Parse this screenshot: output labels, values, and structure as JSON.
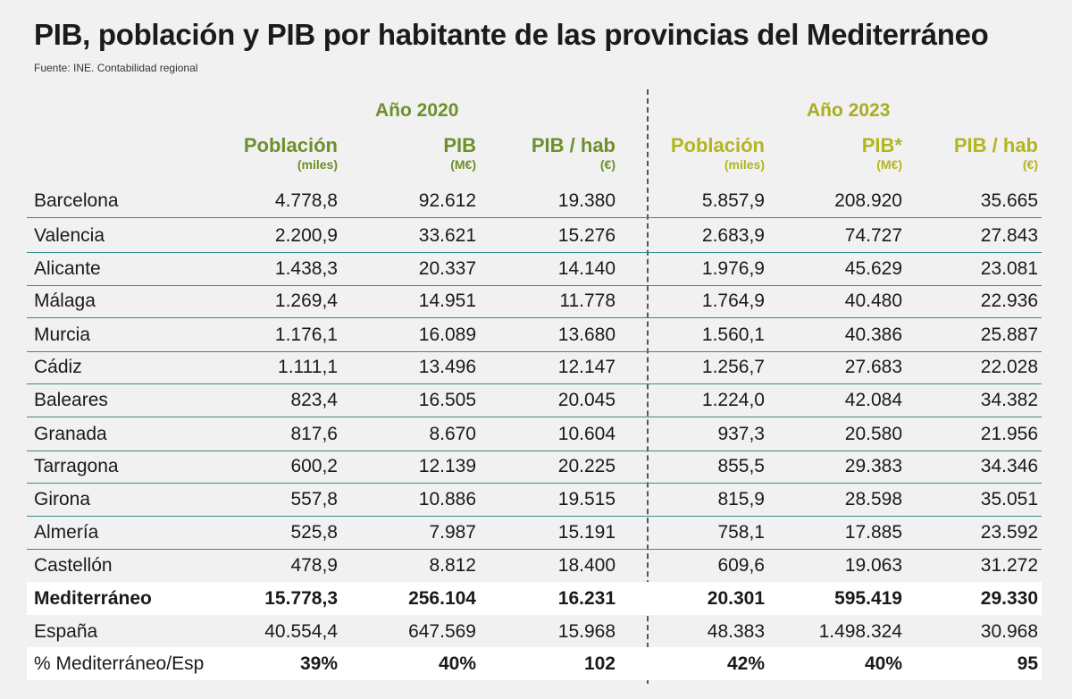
{
  "title": "PIB, población y PIB por habitante de las provincias del Mediterráneo",
  "source": "Fuente: INE. Contabilidad regional",
  "groups": [
    {
      "label": "Año 2020"
    },
    {
      "label": "Año 2023"
    }
  ],
  "columns": [
    {
      "label": "Población",
      "unit": "(miles)"
    },
    {
      "label": "PIB",
      "unit": "(M€)"
    },
    {
      "label": "PIB / hab",
      "unit": "(€)"
    },
    {
      "label": "Población",
      "unit": "(miles)"
    },
    {
      "label": "PIB*",
      "unit": "(M€)"
    },
    {
      "label": "PIB / hab",
      "unit": "(€)"
    }
  ],
  "rows": [
    {
      "name": "Barcelona",
      "values": [
        "4.778,8",
        "92.612",
        "19.380",
        "5.857,9",
        "208.920",
        "35.665"
      ]
    },
    {
      "name": "Valencia",
      "values": [
        "2.200,9",
        "33.621",
        "15.276",
        "2.683,9",
        "74.727",
        "27.843"
      ]
    },
    {
      "name": "Alicante",
      "values": [
        "1.438,3",
        "20.337",
        "14.140",
        "1.976,9",
        "45.629",
        "23.081"
      ]
    },
    {
      "name": "Málaga",
      "values": [
        "1.269,4",
        "14.951",
        "11.778",
        "1.764,9",
        "40.480",
        "22.936"
      ]
    },
    {
      "name": "Murcia",
      "values": [
        "1.176,1",
        "16.089",
        "13.680",
        "1.560,1",
        "40.386",
        "25.887"
      ]
    },
    {
      "name": "Cádiz",
      "values": [
        "1.111,1",
        "13.496",
        "12.147",
        "1.256,7",
        "27.683",
        "22.028"
      ]
    },
    {
      "name": "Baleares",
      "values": [
        "823,4",
        "16.505",
        "20.045",
        "1.224,0",
        "42.084",
        "34.382"
      ]
    },
    {
      "name": "Granada",
      "values": [
        "817,6",
        "8.670",
        "10.604",
        "937,3",
        "20.580",
        "21.956"
      ]
    },
    {
      "name": "Tarragona",
      "values": [
        "600,2",
        "12.139",
        "20.225",
        "855,5",
        "29.383",
        "34.346"
      ]
    },
    {
      "name": "Girona",
      "values": [
        "557,8",
        "10.886",
        "19.515",
        "815,9",
        "28.598",
        "35.051"
      ]
    },
    {
      "name": "Almería",
      "values": [
        "525,8",
        "7.987",
        "15.191",
        "758,1",
        "17.885",
        "23.592"
      ]
    },
    {
      "name": "Castellón",
      "values": [
        "478,9",
        "8.812",
        "18.400",
        "609,6",
        "19.063",
        "31.272"
      ]
    },
    {
      "name": "Mediterráneo",
      "values": [
        "15.778,3",
        "256.104",
        "16.231",
        "20.301",
        "595.419",
        "29.330"
      ]
    },
    {
      "name": "España",
      "values": [
        "40.554,4",
        "647.569",
        "15.968",
        "48.383",
        "1.498.324",
        "30.968"
      ]
    },
    {
      "name": "% Mediterráneo/Esp",
      "values": [
        "39%",
        "40%",
        "102",
        "42%",
        "40%",
        "95"
      ]
    }
  ],
  "colors": {
    "year_2020": "#6e8f2c",
    "year_2023": "#b3b51f",
    "rule": "#3a8a8a",
    "background": "#f1f1f1"
  }
}
